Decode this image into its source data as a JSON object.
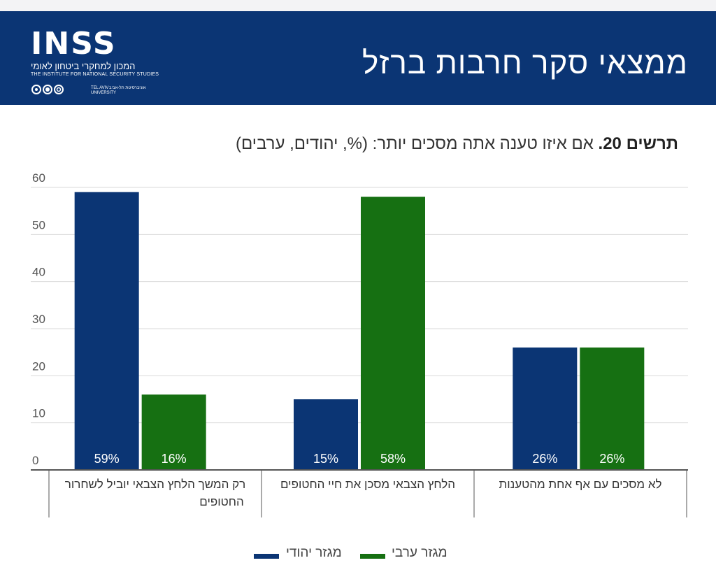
{
  "header": {
    "title": "ממצאי סקר חרבות ברזל",
    "logo": {
      "wordmark": "INSS",
      "hebrew_name": "המכון למחקרי ביטחון לאומי",
      "english_name": "THE INSTITUTE FOR NATIONAL SECURITY STUDIES",
      "tau_en": "TEL AVIV UNIVERSITY",
      "tau_he": "אוניברסיטת תל-אביב"
    },
    "background_color": "#0b3574"
  },
  "chart_title": {
    "label": "תרשים 20.",
    "text": " אם איזו טענה אתה מסכים יותר: (%, יהודים, ערבים)"
  },
  "chart_data": {
    "type": "bar",
    "title": "תרשים 20. אם איזו טענה אתה מסכים יותר: (%, יהודים, ערבים)",
    "categories": [
      "רק המשך הלחץ הצבאי יוביל לשחרור החטופים",
      "הלחץ הצבאי מסכן את חיי החטופים",
      "לא מסכים עם אף אחת מהטענות"
    ],
    "category_lines": [
      [
        "רק המשך הלחץ הצבאי יוביל לשחרור",
        "החטופים"
      ],
      [
        "הלחץ הצבאי מסכן את חיי החטופים"
      ],
      [
        "לא מסכים עם אף אחת מהטענות"
      ]
    ],
    "series": [
      {
        "name": "מגזר יהודי",
        "color": "#0b3574",
        "values": [
          59,
          15,
          26
        ],
        "labels": [
          "59%",
          "15%",
          "26%"
        ]
      },
      {
        "name": "מגזר ערבי",
        "color": "#167012",
        "values": [
          16,
          58,
          26
        ],
        "labels": [
          "16%",
          "58%",
          "26%"
        ]
      }
    ],
    "ylim": [
      0,
      60
    ],
    "yticks": [
      0,
      10,
      20,
      30,
      40,
      50,
      60
    ],
    "xlabel": "",
    "ylabel": "",
    "grid": true,
    "legend_position": "bottom"
  },
  "legend": {
    "items": [
      {
        "label": "מגזר ערבי",
        "color": "#167012"
      },
      {
        "label": "מגזר יהודי",
        "color": "#0b3574"
      }
    ]
  }
}
